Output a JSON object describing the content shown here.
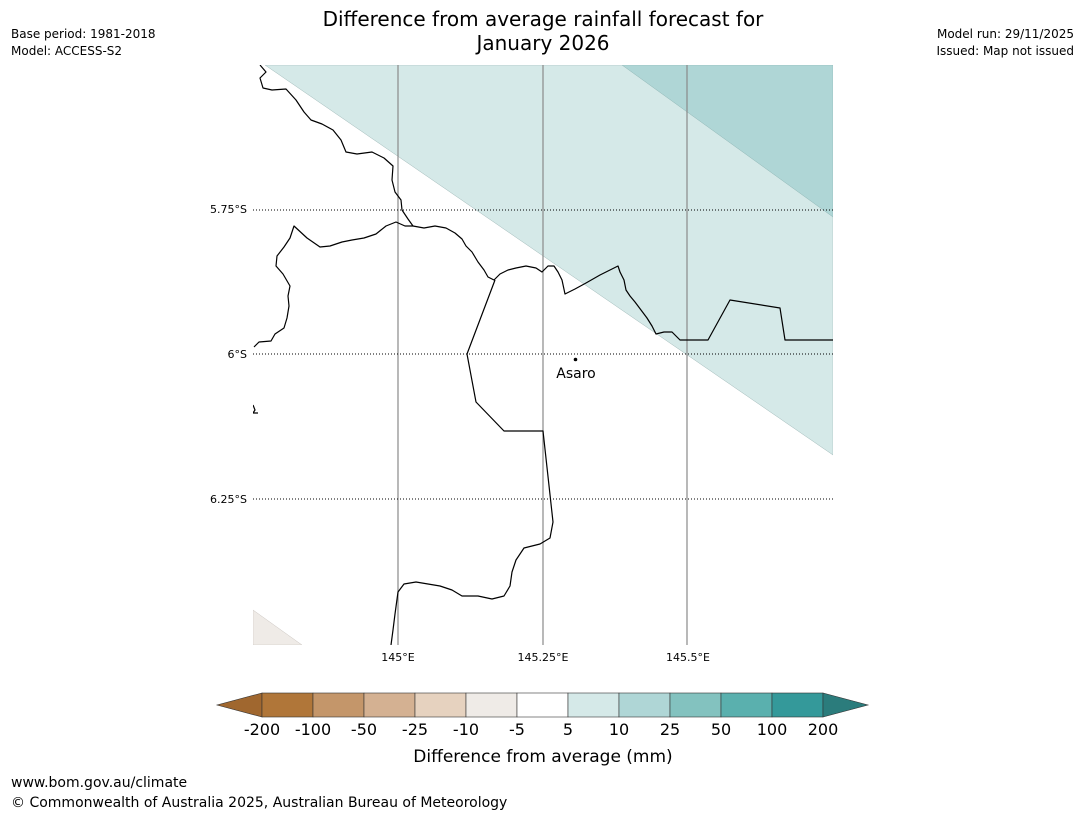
{
  "header": {
    "title_line1": "Difference from average rainfall forecast for",
    "title_line2": "January 2026",
    "base_period": "Base period: 1981-2018",
    "model": "Model: ACCESS-S2",
    "model_run": "Model run: 29/11/2025",
    "issued": "Issued: Map not issued"
  },
  "map": {
    "lat_labels": [
      "5.75°S",
      "6°S",
      "6.25°S"
    ],
    "lon_labels": [
      "145°E",
      "145.25°E",
      "145.5°E"
    ],
    "place": "Asaro"
  },
  "colorbar": {
    "colors": [
      "#a0672f",
      "#b07639",
      "#c4966a",
      "#d4b192",
      "#e6d2bf",
      "#efebe7",
      "#ffffff",
      "#d5e9e8",
      "#afd6d6",
      "#83c2bf",
      "#5ab0ae",
      "#34999a",
      "#2b7c7c"
    ],
    "ticks": [
      "-200",
      "-100",
      "-50",
      "-25",
      "-10",
      "-5",
      "5",
      "10",
      "25",
      "50",
      "100",
      "200"
    ],
    "label": "Difference from average (mm)"
  },
  "footer": {
    "url": "www.bom.gov.au/climate",
    "copyright": "© Commonwealth of Australia 2025, Australian Bureau of Meteorology"
  }
}
